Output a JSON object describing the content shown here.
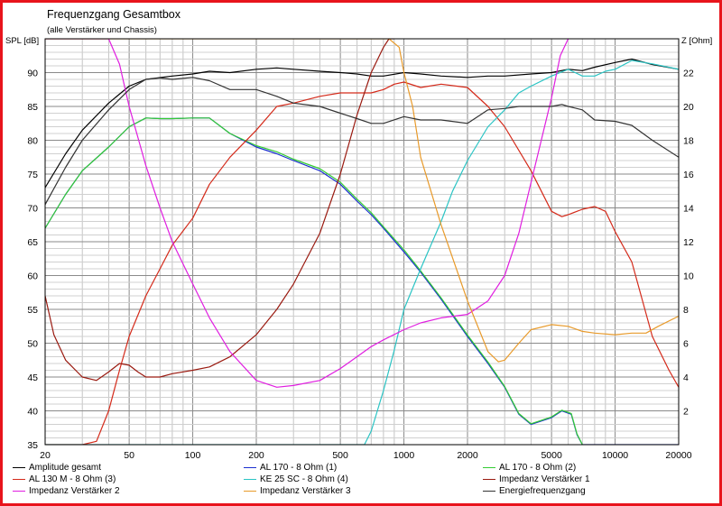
{
  "chart_data": {
    "type": "line",
    "title": "Frequenzgang Gesamtbox",
    "subtitle": "(alle Verstärker und Chassis)",
    "ylabel": "SPL [dB]",
    "y2label": "Z [Ohm]",
    "x_scale": "log",
    "xlim": [
      20,
      20000
    ],
    "ylim": [
      35,
      95
    ],
    "y2lim": [
      0,
      24
    ],
    "x_ticks": [
      20,
      50,
      100,
      200,
      500,
      1000,
      2000,
      5000,
      10000,
      20000
    ],
    "x_tick_labels": [
      "20",
      "50",
      "100",
      "200",
      "500",
      "1000",
      "2000",
      "5000",
      "10000",
      "20000"
    ],
    "y_ticks": [
      35,
      40,
      45,
      50,
      55,
      60,
      65,
      70,
      75,
      80,
      85,
      90
    ],
    "y_tick_labels": [
      "35",
      "40",
      "45",
      "50",
      "55",
      "60",
      "65",
      "70",
      "75",
      "80",
      "85",
      "90"
    ],
    "y2_ticks": [
      2,
      4,
      6,
      8,
      10,
      12,
      14,
      16,
      18,
      20,
      22
    ],
    "y2_tick_labels": [
      "2",
      "4",
      "6",
      "8",
      "10",
      "12",
      "14",
      "16",
      "18",
      "20",
      "22"
    ],
    "grid": true,
    "legend_position": "bottom",
    "legend_columns": 3,
    "series": [
      {
        "name": "Amplitude gesamt",
        "color": "#000000",
        "axis": "left",
        "x": [
          20,
          25,
          30,
          40,
          50,
          60,
          80,
          100,
          120,
          150,
          200,
          250,
          300,
          400,
          500,
          600,
          700,
          800,
          1000,
          1200,
          1500,
          2000,
          2500,
          3000,
          4000,
          5000,
          6000,
          7000,
          8000,
          10000,
          12000,
          15000,
          20000
        ],
        "y": [
          73,
          78,
          81.5,
          85.5,
          88,
          89,
          89.5,
          89.8,
          90.2,
          90,
          90.5,
          90.7,
          90.5,
          90.2,
          90,
          89.8,
          89.5,
          89.5,
          90,
          89.8,
          89.5,
          89.3,
          89.5,
          89.5,
          89.8,
          90,
          90.5,
          90.3,
          90.8,
          91.5,
          92,
          91.2,
          90.5
        ]
      },
      {
        "name": "AL 170 - 8 Ohm (1)",
        "color": "#1a2fd0",
        "axis": "left",
        "x": [
          20,
          25,
          30,
          40,
          50,
          60,
          70,
          80,
          100,
          120,
          150,
          200,
          250,
          300,
          400,
          500,
          600,
          700,
          800,
          1000,
          1200,
          1500,
          2000,
          2500,
          3000,
          3500,
          4000,
          5000,
          5600,
          6200,
          6600,
          7000,
          8000,
          10000,
          15000,
          20000
        ],
        "y": [
          67,
          72,
          75.5,
          79,
          82,
          83.3,
          83.2,
          83.2,
          83.3,
          83.3,
          81,
          79,
          78,
          77,
          75.5,
          73.5,
          71,
          69,
          67,
          63.5,
          60.5,
          56.5,
          51,
          47,
          43.5,
          39.5,
          38,
          39,
          40,
          39.5,
          36.5,
          35,
          35,
          35,
          35,
          35
        ]
      },
      {
        "name": "AL 170 - 8 Ohm (2)",
        "color": "#33cc33",
        "axis": "left",
        "x": [
          20,
          25,
          30,
          40,
          50,
          60,
          70,
          80,
          100,
          120,
          150,
          200,
          250,
          300,
          400,
          500,
          600,
          700,
          800,
          1000,
          1200,
          1500,
          2000,
          2500,
          3000,
          3500,
          4000,
          5000,
          5600,
          6200,
          6600,
          7000
        ],
        "y": [
          67,
          72,
          75.5,
          79,
          82,
          83.3,
          83.2,
          83.2,
          83.3,
          83.3,
          81,
          79.2,
          78.3,
          77.2,
          75.8,
          73.8,
          71.3,
          69.3,
          67.2,
          63.8,
          60.7,
          56.7,
          51.2,
          47.2,
          43.6,
          39.6,
          38.1,
          39.1,
          40.1,
          39.6,
          36.6,
          35
        ]
      },
      {
        "name": "AL 130 M - 8 Ohm (3)",
        "color": "#d42a1a",
        "axis": "left",
        "x": [
          20,
          30,
          35,
          40,
          45,
          50,
          60,
          70,
          80,
          100,
          120,
          150,
          200,
          250,
          300,
          400,
          500,
          600,
          700,
          800,
          900,
          1000,
          1200,
          1500,
          2000,
          2500,
          3000,
          4000,
          5000,
          5600,
          6000,
          7000,
          8000,
          9000,
          10000,
          12000,
          15000,
          18000,
          20000
        ],
        "y": [
          35,
          35,
          35.5,
          40,
          46,
          51,
          57,
          61,
          64.5,
          68.5,
          73.5,
          77.5,
          81.5,
          85,
          85.5,
          86.5,
          87,
          87,
          87,
          87.5,
          88.3,
          88.6,
          87.8,
          88.3,
          87.8,
          85,
          82,
          75.5,
          69.5,
          68.7,
          69,
          69.8,
          70.2,
          69.5,
          66.5,
          62,
          51,
          46,
          43.5
        ]
      },
      {
        "name": "KE 25 SC - 8 Ohm    (4)",
        "color": "#2ac4c4",
        "axis": "left",
        "x": [
          20,
          500,
          650,
          700,
          800,
          900,
          1000,
          1200,
          1500,
          1700,
          2000,
          2500,
          3000,
          3500,
          4000,
          5000,
          6000,
          7000,
          8000,
          9000,
          10000,
          12000,
          15000,
          20000
        ],
        "y": [
          35,
          35,
          35,
          37,
          43,
          49,
          55,
          61,
          68,
          72.5,
          77,
          82,
          84.5,
          87,
          88,
          89.5,
          90.5,
          89.5,
          89.5,
          90.2,
          90.5,
          91.8,
          91.3,
          90.5
        ]
      },
      {
        "name": "Impedanz Verstärker 1",
        "color": "#9a1a10",
        "axis": "right",
        "x": [
          20,
          22,
          25,
          30,
          35,
          40,
          45,
          50,
          55,
          60,
          70,
          80,
          100,
          120,
          150,
          200,
          250,
          300,
          400,
          500,
          600,
          700,
          800,
          850,
          900
        ],
        "y": [
          8.8,
          6.5,
          5,
          4,
          3.8,
          4.3,
          4.8,
          4.7,
          4.3,
          4,
          4,
          4.2,
          4.4,
          4.6,
          5.2,
          6.5,
          8,
          9.5,
          12.5,
          16,
          19.5,
          22,
          23.5,
          24,
          24
        ]
      },
      {
        "name": "Impedanz Verstärker 2",
        "color": "#e01ee0",
        "axis": "right",
        "x": [
          20,
          40,
          45,
          50,
          60,
          70,
          80,
          100,
          120,
          150,
          200,
          250,
          300,
          400,
          500,
          600,
          700,
          800,
          1000,
          1200,
          1500,
          2000,
          2500,
          3000,
          3500,
          4000,
          5000,
          5500,
          6000
        ],
        "y": [
          24,
          24,
          22.5,
          20,
          16.5,
          14,
          12,
          9.5,
          7.5,
          5.5,
          3.8,
          3.4,
          3.5,
          3.8,
          4.5,
          5.2,
          5.8,
          6.2,
          6.8,
          7.2,
          7.5,
          7.7,
          8.5,
          10,
          12.5,
          15.5,
          20.5,
          23,
          24
        ]
      },
      {
        "name": "Impedanz Verstärker 3",
        "color": "#e89a2a",
        "axis": "right",
        "x": [
          20,
          850,
          950,
          1000,
          1100,
          1200,
          1500,
          2000,
          2500,
          2800,
          3000,
          3500,
          4000,
          5000,
          6000,
          7000,
          8000,
          10000,
          12000,
          14000,
          16000,
          20000
        ],
        "y": [
          24,
          24,
          23.5,
          22,
          20,
          17,
          13,
          8.5,
          5.5,
          4.9,
          5,
          6,
          6.8,
          7.1,
          7,
          6.7,
          6.6,
          6.5,
          6.6,
          6.6,
          7,
          7.6
        ]
      },
      {
        "name": "Energiefrequenzgang",
        "color": "#333333",
        "axis": "left",
        "x": [
          20,
          25,
          30,
          40,
          50,
          60,
          70,
          80,
          100,
          120,
          150,
          180,
          200,
          250,
          300,
          400,
          500,
          600,
          700,
          800,
          1000,
          1200,
          1500,
          2000,
          2500,
          3000,
          3500,
          4000,
          5000,
          5600,
          6000,
          7000,
          8000,
          10000,
          12000,
          15000,
          20000
        ],
        "y": [
          70.5,
          76,
          80,
          84.5,
          87.5,
          89,
          89.2,
          89,
          89.3,
          88.8,
          87.5,
          87.5,
          87.5,
          86.5,
          85.5,
          85,
          84,
          83.2,
          82.5,
          82.5,
          83.5,
          83,
          83,
          82.5,
          84.5,
          84.7,
          85,
          85,
          85,
          85.3,
          85,
          84.5,
          83,
          82.8,
          82.2,
          80,
          77.5
        ]
      }
    ]
  }
}
